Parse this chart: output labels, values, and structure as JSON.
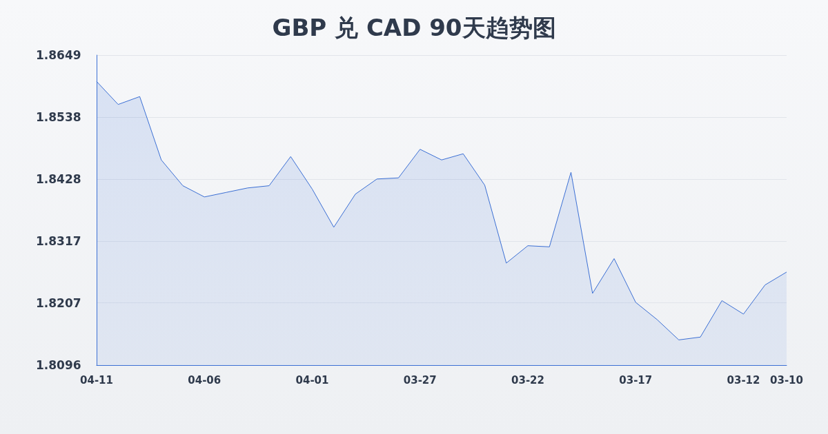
{
  "chart_data": {
    "type": "area",
    "title": "GBP 兑 CAD 90天趋势图",
    "categories": [
      "04-11",
      null,
      null,
      null,
      null,
      "04-06",
      null,
      null,
      null,
      null,
      "04-01",
      null,
      null,
      null,
      null,
      "03-27",
      null,
      null,
      null,
      null,
      "03-22",
      null,
      null,
      null,
      null,
      "03-17",
      null,
      null,
      null,
      null,
      "03-12",
      null,
      "03-10"
    ],
    "series": [
      {
        "color": "#3b6fd4",
        "values": [
          1.8602,
          1.8561,
          1.8575,
          1.8462,
          1.8416,
          1.8396,
          1.8404,
          1.8412,
          1.8416,
          1.8468,
          1.841,
          1.8342,
          1.8401,
          1.8428,
          1.843,
          1.8481,
          1.8462,
          1.8473,
          1.8417,
          1.8278,
          1.8309,
          1.8307,
          1.844,
          1.8224,
          1.8286,
          1.8208,
          1.8177,
          1.8141,
          1.8146,
          1.8211,
          1.8187,
          1.8239,
          1.8262
        ]
      }
    ],
    "ylim": [
      1.8096,
      1.8649
    ],
    "yticks": [
      1.8096,
      1.8207,
      1.8317,
      1.8428,
      1.8538,
      1.8649
    ],
    "grid": "y",
    "marker": "none"
  }
}
